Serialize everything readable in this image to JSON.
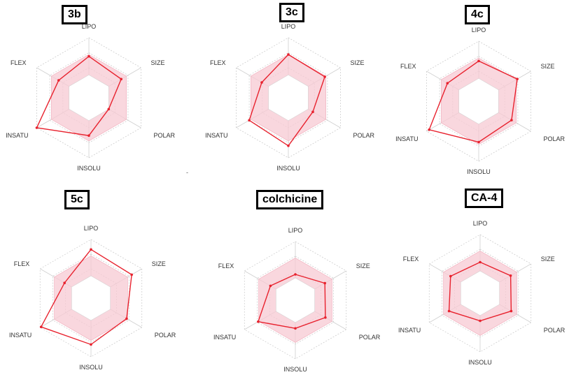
{
  "chart_data": [
    {
      "type": "radar",
      "title": "3b",
      "axes": [
        "LIPO",
        "SIZE",
        "POLAR",
        "INSOLU",
        "INSATU",
        "FLEX"
      ],
      "range": [
        0,
        1
      ],
      "band": [
        0.38,
        0.72
      ],
      "values": [
        0.69,
        0.62,
        0.38,
        0.63,
        1.0,
        0.58
      ],
      "series_color": "#e8222e",
      "band_color": "#f7c9d3"
    },
    {
      "type": "radar",
      "title": "3c",
      "axes": [
        "LIPO",
        "SIZE",
        "POLAR",
        "INSOLU",
        "INSATU",
        "FLEX"
      ],
      "range": [
        0,
        1
      ],
      "band": [
        0.38,
        0.72
      ],
      "values": [
        0.72,
        0.7,
        0.47,
        0.8,
        0.75,
        0.51
      ],
      "series_color": "#e8222e",
      "band_color": "#f7c9d3"
    },
    {
      "type": "radar",
      "title": "4c",
      "axes": [
        "LIPO",
        "SIZE",
        "POLAR",
        "INSOLU",
        "INSATU",
        "FLEX"
      ],
      "range": [
        0,
        1
      ],
      "band": [
        0.38,
        0.72
      ],
      "values": [
        0.67,
        0.74,
        0.63,
        0.68,
        0.95,
        0.6
      ],
      "series_color": "#e8222e",
      "band_color": "#f7c9d3"
    },
    {
      "type": "radar",
      "title": "5c",
      "axes": [
        "LIPO",
        "SIZE",
        "POLAR",
        "INSOLU",
        "INSATU",
        "FLEX"
      ],
      "range": [
        0,
        1
      ],
      "band": [
        0.38,
        0.72
      ],
      "values": [
        0.83,
        0.8,
        0.7,
        0.79,
        0.98,
        0.52
      ],
      "series_color": "#e8222e",
      "band_color": "#f7c9d3"
    },
    {
      "type": "radar",
      "title": "colchicine",
      "axes": [
        "LIPO",
        "SIZE",
        "POLAR",
        "INSOLU",
        "INSATU",
        "FLEX"
      ],
      "range": [
        0,
        1
      ],
      "band": [
        0.38,
        0.72
      ],
      "values": [
        0.44,
        0.58,
        0.59,
        0.48,
        0.73,
        0.49
      ],
      "series_color": "#e8222e",
      "band_color": "#f7c9d3"
    },
    {
      "type": "radar",
      "title": "CA-4",
      "axes": [
        "LIPO",
        "SIZE",
        "POLAR",
        "INSOLU",
        "INSATU",
        "FLEX"
      ],
      "range": [
        0,
        1
      ],
      "band": [
        0.38,
        0.72
      ],
      "values": [
        0.53,
        0.6,
        0.61,
        0.47,
        0.61,
        0.58
      ],
      "series_color": "#e8222e",
      "band_color": "#f7c9d3"
    }
  ],
  "stray_marks": [
    "-"
  ]
}
